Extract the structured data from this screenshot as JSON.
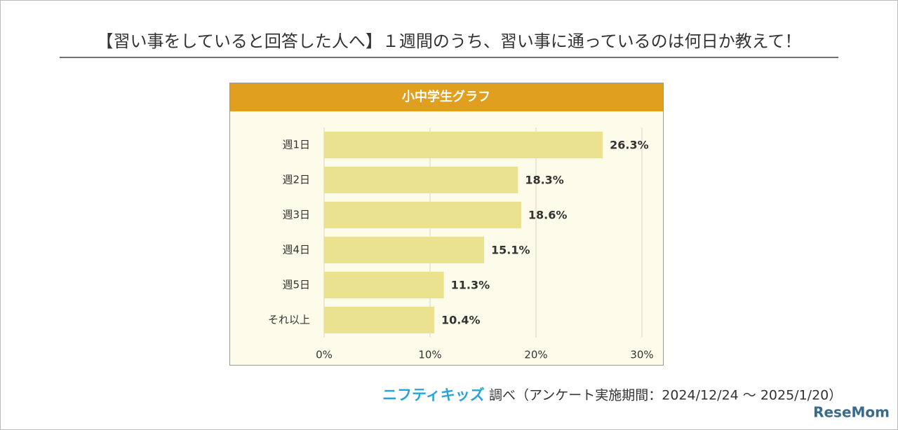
{
  "header": {
    "title": "【習い事をしていると回答した人へ】１週間のうち、習い事に通っているのは何日か教えて！"
  },
  "chart_data": {
    "type": "hbar",
    "title": "小中学生グラフ",
    "categories": [
      "週1日",
      "週2日",
      "週3日",
      "週4日",
      "週5日",
      "それ以上"
    ],
    "values": [
      26.3,
      18.3,
      18.6,
      15.1,
      11.3,
      10.4
    ],
    "value_labels": [
      "26.3%",
      "18.3%",
      "18.6%",
      "15.1%",
      "11.3%",
      "10.4%"
    ],
    "color": "#ebe290",
    "xlim": [
      0,
      30
    ],
    "xticks": [
      {
        "value": 0,
        "label": "0%"
      },
      {
        "value": 10,
        "label": "10%"
      },
      {
        "value": 20,
        "label": "20%"
      },
      {
        "value": 30,
        "label": "30%"
      }
    ],
    "grid": true
  },
  "footer": {
    "brand": "ニフティキッズ",
    "source": "調べ（アンケート実施期間：2024/12/24 ～ 2025/1/20）",
    "watermark": "ReseMom"
  }
}
